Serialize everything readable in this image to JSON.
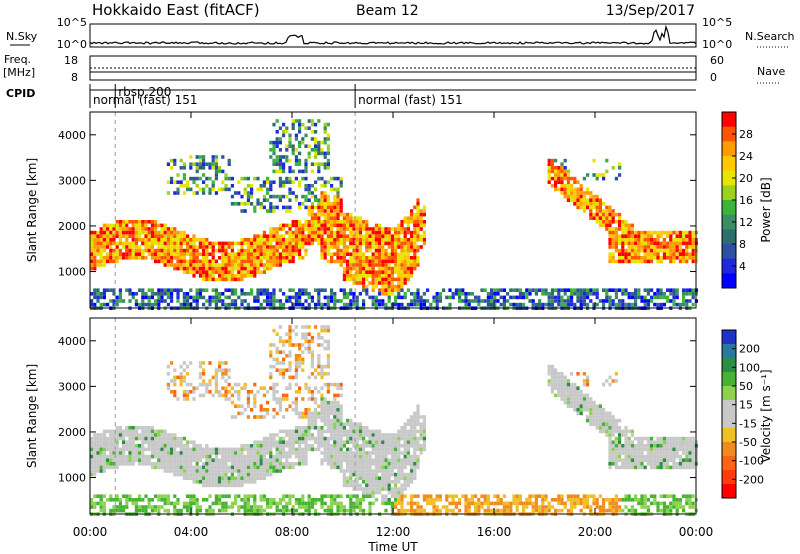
{
  "header": {
    "station": "Hokkaido East (fitACF)",
    "beam": "Beam 12",
    "date": "13/Sep/2017"
  },
  "strip": {
    "nsky_label": "N.Sky",
    "freq_label_1": "Freq.",
    "freq_label_2": "[MHz]",
    "cpid_label": "CPID",
    "nsearch_label": "N.Search",
    "nave_label": "Nave",
    "nsky_ticks": [
      "10^5",
      "10^0"
    ],
    "nsearch_ticks": [
      "10^5",
      "10^0"
    ],
    "freq_ticks": [
      "18",
      "8"
    ],
    "nave_ticks": [
      "60",
      "0"
    ],
    "cpid_entries": [
      {
        "label": "normal (fast) 151",
        "time": 0.0
      },
      {
        "label": "rbsp 200",
        "time": 1.0
      },
      {
        "label": "normal (fast) 151",
        "time": 10.5
      }
    ]
  },
  "chart_data": [
    {
      "type": "heatmap",
      "name": "power",
      "ylabel": "Slant Range [km]",
      "colorbar_label": "Power [dB]",
      "colorbar_ticks": [
        "28",
        "24",
        "20",
        "16",
        "12",
        "8",
        "4"
      ],
      "colorbar_colors": [
        "#ff0000",
        "#ff5500",
        "#ff9a00",
        "#ffc800",
        "#e6e600",
        "#9ad21e",
        "#3cb43c",
        "#3c8c64",
        "#2d6e6e",
        "#2d50a0",
        "#1e28dc",
        "#0000ff"
      ],
      "xlim": [
        0,
        24
      ],
      "ylim": [
        200,
        4500
      ],
      "yticks": [
        1000,
        2000,
        3000,
        4000
      ]
    },
    {
      "type": "heatmap",
      "name": "velocity",
      "ylabel": "Slant Range [km]",
      "colorbar_label": "Velocity [m s⁻¹]",
      "colorbar_ticks": [
        "200",
        "100",
        "50",
        "15",
        "-15",
        "-50",
        "-100",
        "-200"
      ],
      "colorbar_colors": [
        "#1e32c8",
        "#2878a0",
        "#2d8c46",
        "#46b432",
        "#8cd250",
        "#c8c8c8",
        "#c8c8c8",
        "#f0be28",
        "#f08c1e",
        "#ff6414",
        "#ff3c0a",
        "#ff0000"
      ],
      "xlim": [
        0,
        24
      ],
      "ylim": [
        200,
        4500
      ],
      "yticks": [
        1000,
        2000,
        3000,
        4000
      ]
    }
  ],
  "xaxis": {
    "label": "Time UT",
    "ticks": [
      {
        "v": 0,
        "label": "00:00"
      },
      {
        "v": 4,
        "label": "04:00"
      },
      {
        "v": 8,
        "label": "08:00"
      },
      {
        "v": 12,
        "label": "12:00"
      },
      {
        "v": 16,
        "label": "16:00"
      },
      {
        "v": 20,
        "label": "20:00"
      },
      {
        "v": 24,
        "label": "00:00"
      }
    ]
  }
}
